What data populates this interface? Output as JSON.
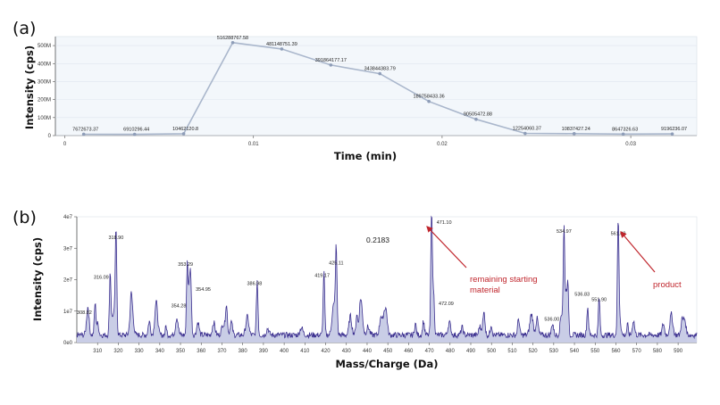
{
  "panels": {
    "a": "(a)",
    "b": "(b)"
  },
  "chart_data": [
    {
      "type": "line",
      "xlabel": "Time (min)",
      "ylabel": "Intensity (cps)",
      "xlim": [
        -0.0005,
        0.0335
      ],
      "ylim": [
        0,
        550000000
      ],
      "x_ticks": [
        0,
        0.01,
        0.02,
        0.03
      ],
      "x_tick_labels": [
        "0",
        "0.01",
        "0.02",
        "0.03"
      ],
      "y_ticks": [
        0,
        100000000,
        200000000,
        300000000,
        400000000,
        500000000
      ],
      "y_tick_labels": [
        "0",
        "100M",
        "200M",
        "300M",
        "400M",
        "500M"
      ],
      "grid": true,
      "x": [
        0.001,
        0.0037,
        0.0063,
        0.0089,
        0.0115,
        0.0141,
        0.0167,
        0.0193,
        0.0218,
        0.0244,
        0.027,
        0.0296,
        0.0322
      ],
      "y": [
        7672673.37,
        6910296.44,
        10462120.8,
        516288767.58,
        481148751.39,
        391864177.17,
        343844383.79,
        189758433.36,
        90505472.88,
        12254060.37,
        10837427.24,
        8647326.63,
        9196236.07
      ],
      "data_labels": [
        "7672673.37",
        "6910296.44",
        "10462120.8",
        "516288767.58",
        "481148751.39",
        "391864177.17",
        "343844383.79",
        "189758433.36",
        "90505472.88",
        "12254060.37",
        "10837427.24",
        "8647326.63",
        "9196236.07"
      ]
    },
    {
      "type": "line",
      "xlabel": "Mass/Charge (Da)",
      "ylabel": "Intensity (cps)",
      "xlim": [
        300,
        599
      ],
      "ylim": [
        0,
        40000000
      ],
      "x_ticks": [
        310,
        320,
        330,
        340,
        350,
        360,
        370,
        380,
        390,
        400,
        410,
        420,
        430,
        440,
        450,
        460,
        470,
        480,
        490,
        500,
        510,
        520,
        530,
        540,
        550,
        560,
        570,
        580,
        590
      ],
      "y_ticks": [
        0,
        10000000,
        20000000,
        30000000,
        40000000
      ],
      "y_tick_labels": [
        "0e0",
        "1e7",
        "2e7",
        "3e7",
        "4e7"
      ],
      "peaks": [
        {
          "mz": 308.82,
          "intensity": 10000000,
          "label": "308.82"
        },
        {
          "mz": 316.09,
          "intensity": 19500000,
          "label": "316.09"
        },
        {
          "mz": 318.9,
          "intensity": 32000000,
          "label": "318.90"
        },
        {
          "mz": 353.29,
          "intensity": 23500000,
          "label": "353.29"
        },
        {
          "mz": 354.28,
          "intensity": 14000000,
          "label": "354.28"
        },
        {
          "mz": 354.95,
          "intensity": 16500000,
          "label": "354.95"
        },
        {
          "mz": 386.98,
          "intensity": 17500000,
          "label": "386.98"
        },
        {
          "mz": 419.17,
          "intensity": 20000000,
          "label": "419.17"
        },
        {
          "mz": 425.11,
          "intensity": 24000000,
          "label": "425.11"
        },
        {
          "mz": 471.1,
          "intensity": 40000000,
          "label": "471.10"
        },
        {
          "mz": 472.09,
          "intensity": 13000000,
          "label": "472.09"
        },
        {
          "mz": 534.97,
          "intensity": 34000000,
          "label": "534.97"
        },
        {
          "mz": 536.0,
          "intensity": 12000000,
          "label": "536.00"
        },
        {
          "mz": 536.83,
          "intensity": 15500000,
          "label": "536.83"
        },
        {
          "mz": 551.9,
          "intensity": 12000000,
          "label": "551.90"
        },
        {
          "mz": 561.09,
          "intensity": 36500000,
          "label": "561.09"
        }
      ],
      "annotations": [
        {
          "text": "0.2183"
        },
        {
          "line1": "remaining starting",
          "line2": "material",
          "target_mz": 471.1
        },
        {
          "text": "product",
          "target_mz": 561.09
        }
      ]
    }
  ]
}
